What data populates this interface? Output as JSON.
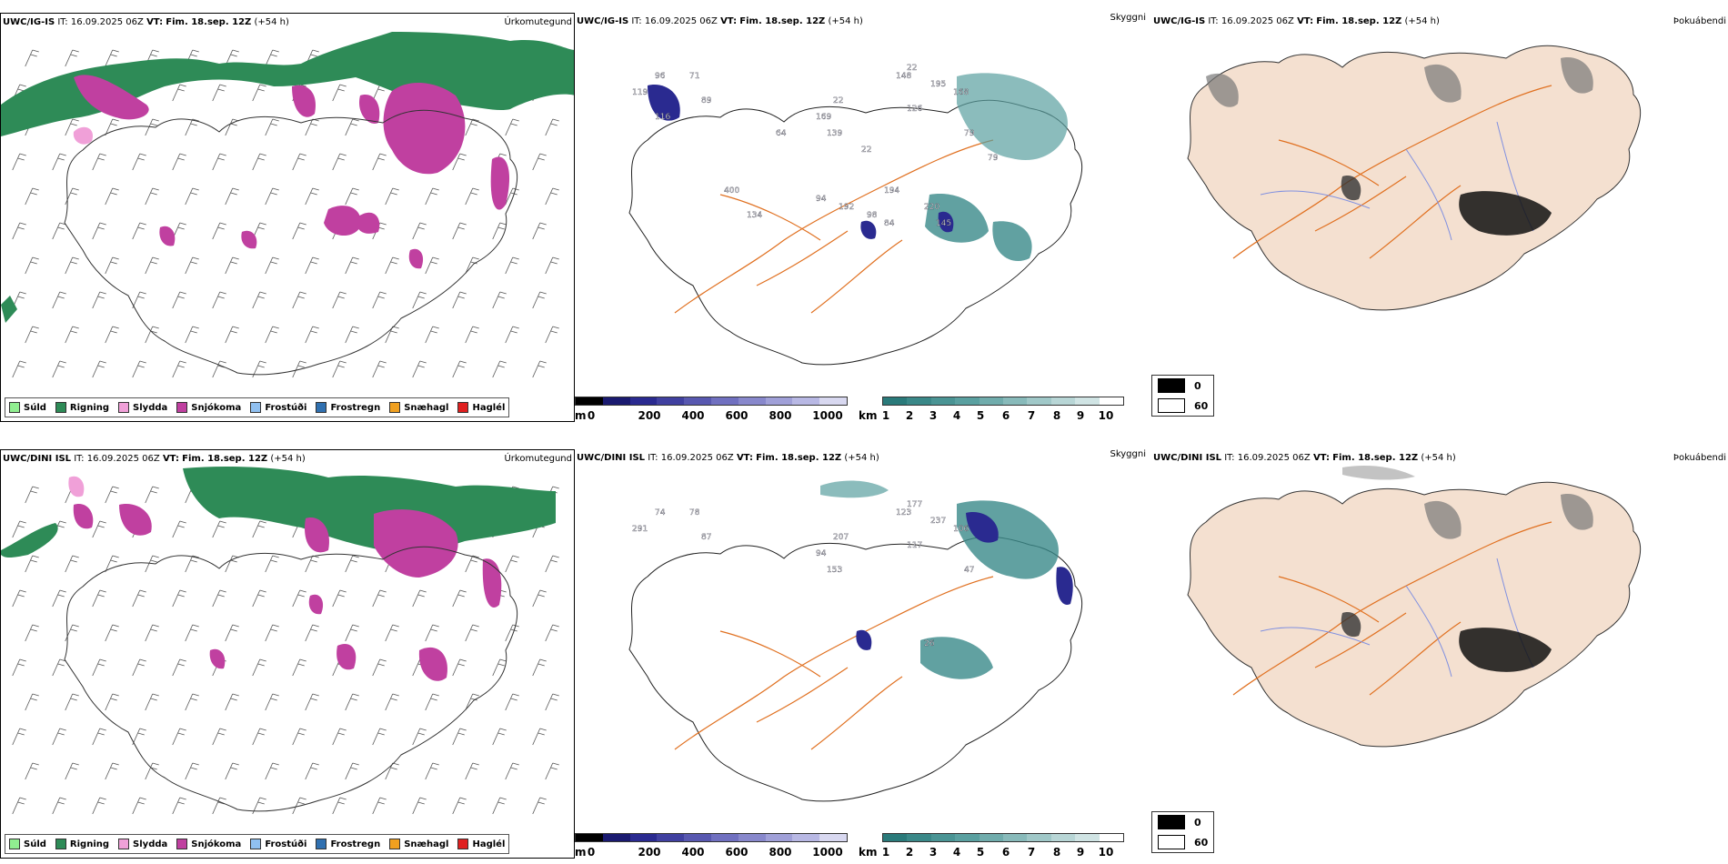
{
  "rows": [
    {
      "model": "UWC/IG-IS",
      "it_label": "IT:",
      "it_value": "16.09.2025 06Z",
      "vt_label": "VT:",
      "vt_value": "Fim. 18.sep. 12Z",
      "lead": "(+54 h)",
      "panels": {
        "precip": {
          "title_right": "Úrkomutegund"
        },
        "cloud": {
          "title_right": "Skyggni"
        },
        "sun": {
          "title_right": "Þokuábendi"
        }
      },
      "cloud_labels": [
        "96",
        "71",
        "89",
        "119",
        "22",
        "22",
        "148",
        "195",
        "168",
        "169",
        "126",
        "139",
        "79",
        "220",
        "194",
        "192",
        "98",
        "84",
        "134",
        "94",
        "400",
        "145",
        "79",
        "22",
        "116",
        "64"
      ]
    },
    {
      "model": "UWC/DINI ISL",
      "it_label": "IT:",
      "it_value": "16.09.2025 06Z",
      "vt_label": "VT:",
      "vt_value": "Fim. 18.sep. 12Z",
      "lead": "(+54 h)",
      "panels": {
        "precip": {
          "title_right": "Úrkomutegund"
        },
        "cloud": {
          "title_right": "Skyggni"
        },
        "sun": {
          "title_right": "Þokuábendi"
        }
      },
      "cloud_labels": [
        "74",
        "78",
        "87",
        "291",
        "177",
        "207",
        "123",
        "237",
        "106",
        "94",
        "117",
        "153",
        "47",
        "26"
      ]
    }
  ],
  "precip_legend": [
    {
      "label": "Súld",
      "color": "#90ee90"
    },
    {
      "label": "Rigning",
      "color": "#2e8b57"
    },
    {
      "label": "Slydda",
      "color": "#f0a0d8"
    },
    {
      "label": "Snjókoma",
      "color": "#c040a0"
    },
    {
      "label": "Frostúði",
      "color": "#90c0f0"
    },
    {
      "label": "Frostregn",
      "color": "#3070b0"
    },
    {
      "label": "Snæhagl",
      "color": "#f0a020"
    },
    {
      "label": "Haglél",
      "color": "#e02020"
    }
  ],
  "ceiling_bar": {
    "unit": "m",
    "ticks": [
      "0",
      "200",
      "400",
      "600",
      "800",
      "1000"
    ],
    "colors": [
      "#000000",
      "#1a1a70",
      "#2a2a90",
      "#4040a0",
      "#5858b0",
      "#7070c0",
      "#8888cc",
      "#a0a0d8",
      "#b8b8e4",
      "#d8d8f0"
    ]
  },
  "visibility_bar": {
    "unit": "km",
    "ticks": [
      "1",
      "2",
      "3",
      "4",
      "5",
      "6",
      "7",
      "8",
      "9",
      "10"
    ],
    "colors": [
      "#2a7a7a",
      "#3a8888",
      "#4a9494",
      "#5aa0a0",
      "#70acac",
      "#88baba",
      "#a0c8c8",
      "#b8d6d6",
      "#d0e4e4",
      "#ffffff"
    ]
  },
  "sun_legend": [
    {
      "label": "0",
      "color": "#000000"
    },
    {
      "label": "60",
      "color": "#ffffff"
    }
  ],
  "colors": {
    "rain": "#2e8b57",
    "snow": "#c040a0",
    "sleet": "#f0a0d8",
    "road": "#e07020",
    "land": "#f4e0d0",
    "river": "#8090e0",
    "cloud_teal": "#3a8a8a",
    "cloud_blue": "#2a2a90"
  }
}
